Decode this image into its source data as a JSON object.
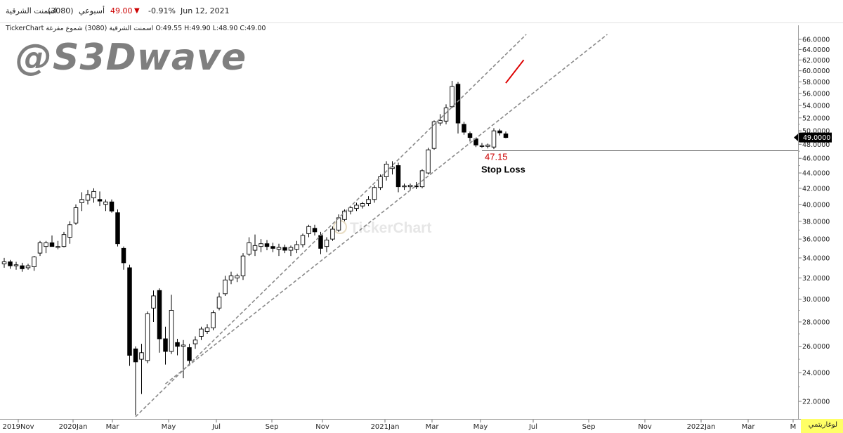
{
  "header": {
    "symbol_name": "اسمنت الشرقية",
    "symbol_code": "(3080)",
    "period": "أسبوعي",
    "price": "49.00",
    "change": "-0.91%",
    "date": "Jun 12, 2021",
    "down_color": "#cc0000"
  },
  "info_line": "TickerChart اسمنت الشرقية (3080) شموع مفرغة O:49.55 H:49.90 L:48.90 C:49.00",
  "watermark": "@S3Dwave",
  "logo_text": "TickerChart",
  "scale_button": "لوغاريتمي",
  "chart_data": {
    "type": "candlestick",
    "scale": "log",
    "ylim": [
      21,
      67
    ],
    "y_ticks": [
      "22.0000",
      "24.0000",
      "26.0000",
      "28.0000",
      "30.0000",
      "32.0000",
      "34.0000",
      "36.0000",
      "38.0000",
      "40.0000",
      "42.0000",
      "44.0000",
      "46.0000",
      "48.0000",
      "50.0000",
      "52.0000",
      "54.0000",
      "56.0000",
      "58.0000",
      "60.0000",
      "62.0000",
      "64.0000",
      "66.0000"
    ],
    "x_ticks": [
      "2019Nov",
      "2020Jan",
      "Mar",
      "May",
      "Jul",
      "Sep",
      "Nov",
      "2021Jan",
      "Mar",
      "May",
      "Jul",
      "Sep",
      "Nov",
      "2022Jan",
      "Mar",
      "M"
    ],
    "last_price_label": "49.0000",
    "annotations": {
      "level": 47.15,
      "level_text": "47.15",
      "stop_text": "Stop Loss",
      "level_color": "#cc0000"
    },
    "trendlines": [
      {
        "from": [
          "2020-03-29",
          21.0
        ],
        "to": [
          "2021-06-30",
          67.0
        ]
      },
      {
        "from": [
          "2020-05-03",
          23.2
        ],
        "to": [
          "2021-10-03",
          67.0
        ]
      },
      {
        "from": [
          "2021-06-06",
          57.8
        ],
        "to": [
          "2021-06-27",
          62.0
        ],
        "color": "#dd0000"
      }
    ],
    "candles": [
      {
        "date": "2019-10-27",
        "o": 33.4,
        "h": 34.0,
        "l": 33.0,
        "c": 33.6
      },
      {
        "date": "2019-11-03",
        "o": 33.6,
        "h": 33.8,
        "l": 32.9,
        "c": 33.2
      },
      {
        "date": "2019-11-10",
        "o": 33.2,
        "h": 33.6,
        "l": 32.8,
        "c": 33.3
      },
      {
        "date": "2019-11-17",
        "o": 33.2,
        "h": 33.5,
        "l": 32.6,
        "c": 32.9
      },
      {
        "date": "2019-11-24",
        "o": 33.0,
        "h": 33.4,
        "l": 32.8,
        "c": 33.2
      },
      {
        "date": "2019-12-01",
        "o": 33.1,
        "h": 34.2,
        "l": 32.7,
        "c": 34.1
      },
      {
        "date": "2019-12-08",
        "o": 34.5,
        "h": 35.8,
        "l": 34.2,
        "c": 35.6
      },
      {
        "date": "2019-12-15",
        "o": 35.2,
        "h": 35.8,
        "l": 34.5,
        "c": 35.6
      },
      {
        "date": "2019-12-22",
        "o": 35.6,
        "h": 36.4,
        "l": 35.2,
        "c": 35.2
      },
      {
        "date": "2019-12-29",
        "o": 35.1,
        "h": 35.8,
        "l": 34.9,
        "c": 35.2
      },
      {
        "date": "2020-01-05",
        "o": 35.2,
        "h": 36.8,
        "l": 35.1,
        "c": 36.5
      },
      {
        "date": "2020-01-12",
        "o": 36.2,
        "h": 38.0,
        "l": 35.5,
        "c": 37.6
      },
      {
        "date": "2020-01-19",
        "o": 37.8,
        "h": 40.0,
        "l": 37.6,
        "c": 39.6
      },
      {
        "date": "2020-01-26",
        "o": 40.2,
        "h": 41.5,
        "l": 39.2,
        "c": 40.6
      },
      {
        "date": "2020-02-02",
        "o": 40.5,
        "h": 41.8,
        "l": 40.0,
        "c": 41.2
      },
      {
        "date": "2020-02-09",
        "o": 40.8,
        "h": 42.0,
        "l": 40.2,
        "c": 41.6
      },
      {
        "date": "2020-02-16",
        "o": 40.6,
        "h": 41.6,
        "l": 39.8,
        "c": 40.4
      },
      {
        "date": "2020-02-23",
        "o": 40.0,
        "h": 40.6,
        "l": 39.2,
        "c": 40.3
      },
      {
        "date": "2020-03-01",
        "o": 40.3,
        "h": 40.6,
        "l": 39.0,
        "c": 39.2
      },
      {
        "date": "2020-03-08",
        "o": 39.0,
        "h": 39.4,
        "l": 35.2,
        "c": 35.5
      },
      {
        "date": "2020-03-15",
        "o": 35.0,
        "h": 35.2,
        "l": 32.8,
        "c": 33.5
      },
      {
        "date": "2020-03-22",
        "o": 33.0,
        "h": 33.3,
        "l": 24.5,
        "c": 25.3
      },
      {
        "date": "2020-03-29",
        "o": 25.8,
        "h": 26.0,
        "l": 21.1,
        "c": 24.8
      },
      {
        "date": "2020-04-05",
        "o": 25.0,
        "h": 26.2,
        "l": 22.5,
        "c": 25.5
      },
      {
        "date": "2020-04-12",
        "o": 24.9,
        "h": 28.9,
        "l": 24.7,
        "c": 28.7
      },
      {
        "date": "2020-04-19",
        "o": 29.2,
        "h": 30.8,
        "l": 28.0,
        "c": 30.3
      },
      {
        "date": "2020-04-26",
        "o": 30.8,
        "h": 31.0,
        "l": 25.5,
        "c": 26.6
      },
      {
        "date": "2020-05-03",
        "o": 26.6,
        "h": 27.6,
        "l": 24.6,
        "c": 25.6
      },
      {
        "date": "2020-05-10",
        "o": 25.6,
        "h": 30.4,
        "l": 25.4,
        "c": 29.0
      },
      {
        "date": "2020-05-17",
        "o": 26.3,
        "h": 26.6,
        "l": 25.3,
        "c": 26.0
      },
      {
        "date": "2020-05-24",
        "o": 26.0,
        "h": 26.5,
        "l": 23.6,
        "c": 26.1
      },
      {
        "date": "2020-05-31",
        "o": 25.9,
        "h": 26.2,
        "l": 24.5,
        "c": 24.9
      },
      {
        "date": "2020-06-07",
        "o": 26.2,
        "h": 26.8,
        "l": 25.8,
        "c": 26.5
      },
      {
        "date": "2020-06-14",
        "o": 26.8,
        "h": 27.6,
        "l": 26.5,
        "c": 27.4
      },
      {
        "date": "2020-06-21",
        "o": 27.2,
        "h": 27.8,
        "l": 27.0,
        "c": 27.5
      },
      {
        "date": "2020-06-28",
        "o": 27.5,
        "h": 29.0,
        "l": 27.3,
        "c": 28.8
      },
      {
        "date": "2020-07-05",
        "o": 29.2,
        "h": 30.6,
        "l": 29.0,
        "c": 30.2
      },
      {
        "date": "2020-07-12",
        "o": 30.5,
        "h": 32.2,
        "l": 30.3,
        "c": 31.8
      },
      {
        "date": "2020-07-19",
        "o": 31.8,
        "h": 32.6,
        "l": 31.4,
        "c": 32.2
      },
      {
        "date": "2020-07-26",
        "o": 32.0,
        "h": 32.4,
        "l": 31.6,
        "c": 32.2
      },
      {
        "date": "2020-08-02",
        "o": 32.2,
        "h": 34.5,
        "l": 31.8,
        "c": 34.2
      },
      {
        "date": "2020-08-09",
        "o": 34.4,
        "h": 36.2,
        "l": 34.2,
        "c": 35.6
      },
      {
        "date": "2020-08-16",
        "o": 34.8,
        "h": 36.5,
        "l": 34.2,
        "c": 35.3
      },
      {
        "date": "2020-08-23",
        "o": 35.2,
        "h": 36.0,
        "l": 34.6,
        "c": 35.5
      },
      {
        "date": "2020-08-30",
        "o": 35.5,
        "h": 35.9,
        "l": 34.8,
        "c": 35.2
      },
      {
        "date": "2020-09-06",
        "o": 35.2,
        "h": 35.6,
        "l": 34.6,
        "c": 35.0
      },
      {
        "date": "2020-09-13",
        "o": 34.9,
        "h": 35.5,
        "l": 34.2,
        "c": 35.1
      },
      {
        "date": "2020-09-20",
        "o": 35.1,
        "h": 35.4,
        "l": 34.5,
        "c": 34.8
      },
      {
        "date": "2020-09-27",
        "o": 34.8,
        "h": 35.3,
        "l": 34.2,
        "c": 35.1
      },
      {
        "date": "2020-10-04",
        "o": 34.9,
        "h": 35.8,
        "l": 34.5,
        "c": 35.4
      },
      {
        "date": "2020-10-11",
        "o": 35.4,
        "h": 36.6,
        "l": 35.1,
        "c": 36.4
      },
      {
        "date": "2020-10-18",
        "o": 36.6,
        "h": 37.6,
        "l": 36.2,
        "c": 37.4
      },
      {
        "date": "2020-10-25",
        "o": 37.2,
        "h": 37.6,
        "l": 36.4,
        "c": 36.8
      },
      {
        "date": "2020-11-01",
        "o": 36.4,
        "h": 36.8,
        "l": 34.4,
        "c": 35.0
      },
      {
        "date": "2020-11-08",
        "o": 35.2,
        "h": 36.2,
        "l": 34.6,
        "c": 35.9
      },
      {
        "date": "2020-11-15",
        "o": 36.0,
        "h": 37.4,
        "l": 35.8,
        "c": 37.1
      },
      {
        "date": "2020-11-22",
        "o": 37.0,
        "h": 38.8,
        "l": 36.8,
        "c": 38.4
      },
      {
        "date": "2020-11-29",
        "o": 38.2,
        "h": 39.4,
        "l": 38.0,
        "c": 39.2
      },
      {
        "date": "2020-12-06",
        "o": 39.2,
        "h": 39.8,
        "l": 38.8,
        "c": 39.6
      },
      {
        "date": "2020-12-13",
        "o": 39.5,
        "h": 40.2,
        "l": 39.2,
        "c": 39.9
      },
      {
        "date": "2020-12-20",
        "o": 39.8,
        "h": 40.3,
        "l": 39.5,
        "c": 40.1
      },
      {
        "date": "2020-12-27",
        "o": 40.1,
        "h": 41.0,
        "l": 39.8,
        "c": 40.6
      },
      {
        "date": "2021-01-03",
        "o": 40.6,
        "h": 42.4,
        "l": 40.2,
        "c": 42.1
      },
      {
        "date": "2021-01-10",
        "o": 42.1,
        "h": 43.8,
        "l": 41.8,
        "c": 43.5
      },
      {
        "date": "2021-01-17",
        "o": 43.5,
        "h": 45.6,
        "l": 43.0,
        "c": 45.2
      },
      {
        "date": "2021-01-24",
        "o": 44.6,
        "h": 45.6,
        "l": 43.8,
        "c": 44.8
      },
      {
        "date": "2021-01-31",
        "o": 45.0,
        "h": 45.4,
        "l": 41.5,
        "c": 42.2
      },
      {
        "date": "2021-02-07",
        "o": 42.2,
        "h": 42.6,
        "l": 41.8,
        "c": 42.3
      },
      {
        "date": "2021-02-14",
        "o": 42.2,
        "h": 42.6,
        "l": 41.8,
        "c": 42.4
      },
      {
        "date": "2021-02-21",
        "o": 42.3,
        "h": 42.8,
        "l": 41.9,
        "c": 42.2
      },
      {
        "date": "2021-02-28",
        "o": 42.2,
        "h": 44.5,
        "l": 42.0,
        "c": 44.3
      },
      {
        "date": "2021-03-07",
        "o": 44.0,
        "h": 47.5,
        "l": 43.8,
        "c": 47.2
      },
      {
        "date": "2021-03-14",
        "o": 47.4,
        "h": 51.6,
        "l": 47.2,
        "c": 51.4
      },
      {
        "date": "2021-03-21",
        "o": 51.2,
        "h": 52.6,
        "l": 50.8,
        "c": 51.6
      },
      {
        "date": "2021-03-28",
        "o": 51.5,
        "h": 54.2,
        "l": 51.0,
        "c": 53.6
      },
      {
        "date": "2021-04-04",
        "o": 53.8,
        "h": 58.2,
        "l": 53.6,
        "c": 57.2
      },
      {
        "date": "2021-04-11",
        "o": 57.6,
        "h": 58.0,
        "l": 49.6,
        "c": 51.2
      },
      {
        "date": "2021-04-18",
        "o": 51.0,
        "h": 51.4,
        "l": 49.4,
        "c": 49.8
      },
      {
        "date": "2021-04-25",
        "o": 49.6,
        "h": 49.9,
        "l": 48.4,
        "c": 49.0
      },
      {
        "date": "2021-05-02",
        "o": 48.8,
        "h": 49.0,
        "l": 47.6,
        "c": 47.9
      },
      {
        "date": "2021-05-09",
        "o": 47.8,
        "h": 48.2,
        "l": 47.5,
        "c": 47.8
      },
      {
        "date": "2021-05-16",
        "o": 47.7,
        "h": 48.1,
        "l": 47.4,
        "c": 47.9
      },
      {
        "date": "2021-05-23",
        "o": 47.6,
        "h": 50.4,
        "l": 47.3,
        "c": 50.0
      },
      {
        "date": "2021-05-30",
        "o": 50.0,
        "h": 50.3,
        "l": 49.3,
        "c": 49.7
      },
      {
        "date": "2021-06-06",
        "o": 49.55,
        "h": 49.9,
        "l": 48.9,
        "c": 49.0
      }
    ]
  }
}
